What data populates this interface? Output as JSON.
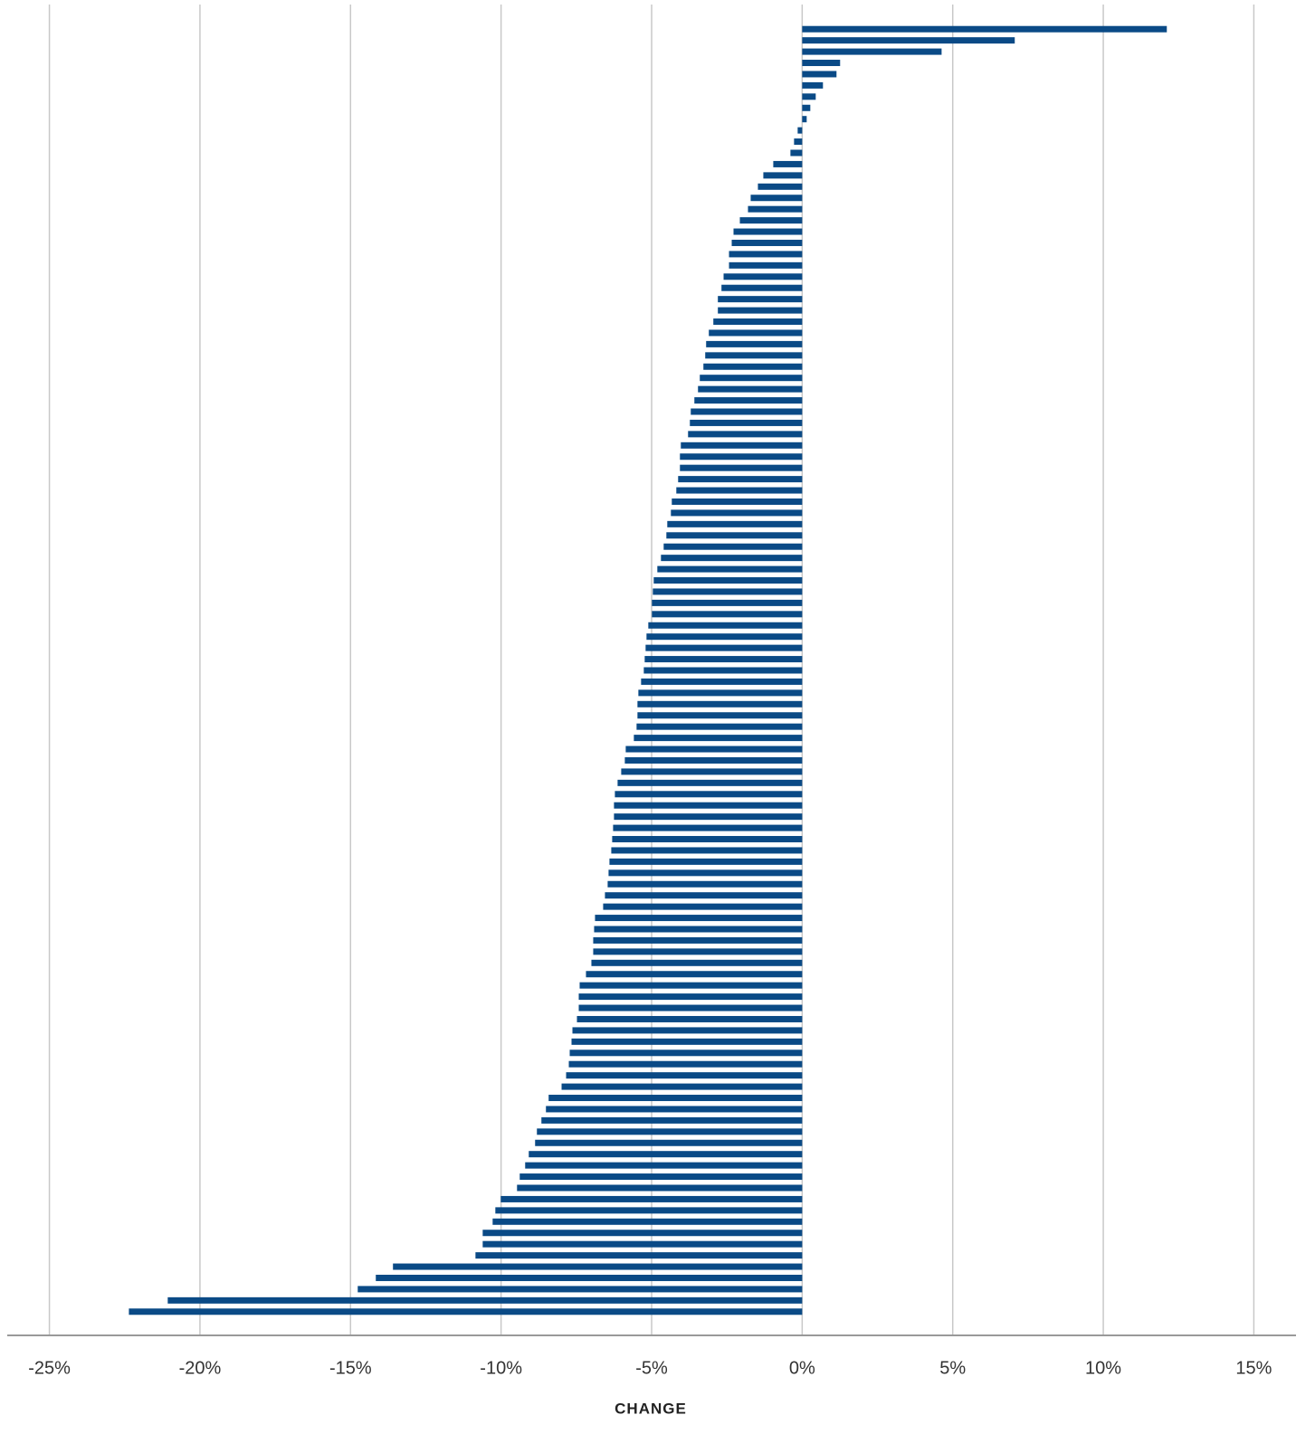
{
  "chart_data": {
    "type": "bar",
    "orientation": "horizontal",
    "x_label": "CHANGE",
    "color": "#0a4a86",
    "grid": true,
    "categories": [
      null,
      null,
      null,
      null,
      null,
      null,
      null,
      null,
      null,
      null,
      null,
      null,
      null,
      null,
      null,
      null,
      null,
      null,
      null,
      null,
      null,
      null,
      null,
      null,
      null,
      null,
      null,
      null,
      null,
      null,
      null,
      null,
      null,
      null,
      null,
      null,
      null,
      null,
      null,
      null,
      null,
      null,
      null,
      null,
      null,
      null,
      null,
      null,
      null,
      null,
      null,
      null,
      null,
      null,
      null,
      null,
      null,
      null,
      null,
      null,
      null,
      null,
      null,
      null,
      null,
      null,
      null,
      null,
      null,
      null,
      null,
      null,
      null,
      null,
      null,
      null,
      null,
      null,
      null,
      null,
      null,
      null,
      null,
      null,
      null,
      null,
      null,
      null,
      null,
      null,
      null,
      null,
      null,
      null,
      null,
      null,
      null,
      null,
      null,
      null,
      null,
      null,
      null,
      null,
      null,
      null,
      null,
      null,
      null,
      null,
      null,
      null,
      null,
      null,
      null
    ],
    "values": [
      12.11,
      7.06,
      4.63,
      1.26,
      1.14,
      0.69,
      0.45,
      0.27,
      0.15,
      -0.15,
      -0.27,
      -0.39,
      -0.96,
      -1.29,
      -1.47,
      -1.71,
      -1.8,
      -2.07,
      -2.28,
      -2.34,
      -2.43,
      -2.43,
      -2.61,
      -2.68,
      -2.8,
      -2.8,
      -2.95,
      -3.1,
      -3.19,
      -3.22,
      -3.28,
      -3.4,
      -3.46,
      -3.58,
      -3.7,
      -3.73,
      -3.79,
      -4.03,
      -4.06,
      -4.06,
      -4.12,
      -4.18,
      -4.33,
      -4.36,
      -4.48,
      -4.51,
      -4.6,
      -4.69,
      -4.81,
      -4.93,
      -4.96,
      -4.99,
      -4.99,
      -5.11,
      -5.17,
      -5.2,
      -5.23,
      -5.26,
      -5.35,
      -5.44,
      -5.47,
      -5.47,
      -5.5,
      -5.59,
      -5.86,
      -5.89,
      -6.01,
      -6.13,
      -6.22,
      -6.25,
      -6.25,
      -6.28,
      -6.31,
      -6.34,
      -6.4,
      -6.43,
      -6.46,
      -6.55,
      -6.61,
      -6.88,
      -6.91,
      -6.94,
      -6.94,
      -7.0,
      -7.18,
      -7.39,
      -7.42,
      -7.42,
      -7.48,
      -7.63,
      -7.66,
      -7.72,
      -7.75,
      -7.84,
      -7.99,
      -8.42,
      -8.51,
      -8.66,
      -8.81,
      -8.87,
      -9.08,
      -9.2,
      -9.38,
      -9.47,
      -10.01,
      -10.19,
      -10.28,
      -10.61,
      -10.61,
      -10.85,
      -13.59,
      -14.16,
      -14.76,
      -21.07,
      -22.36
    ],
    "xlim": [
      -26.4,
      16.4
    ],
    "xticks": [
      {
        "value": -25,
        "label": "-25%"
      },
      {
        "value": -20,
        "label": "-20%"
      },
      {
        "value": -15,
        "label": "-15%"
      },
      {
        "value": -10,
        "label": "-10%"
      },
      {
        "value": -5,
        "label": "-5%"
      },
      {
        "value": 0,
        "label": "0%"
      },
      {
        "value": 5,
        "label": "5%"
      },
      {
        "value": 10,
        "label": "10%"
      },
      {
        "value": 15,
        "label": "15%"
      }
    ]
  }
}
